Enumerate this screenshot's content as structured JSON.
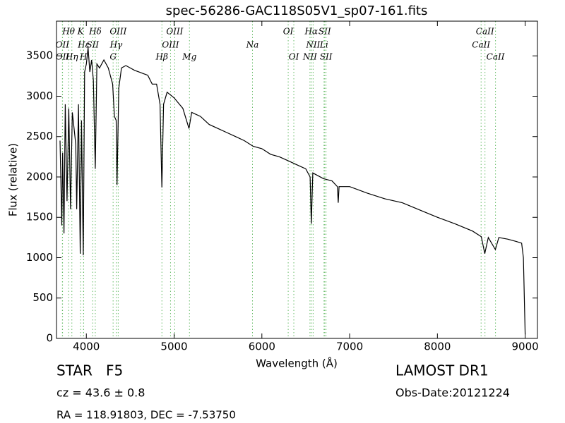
{
  "chart_data": {
    "type": "line",
    "title": "spec-56286-GAC118S05V1_sp07-161.fits",
    "x_label": "Wavelength (Å)",
    "y_label": "Flux (relative)",
    "xlim": [
      3660,
      9140
    ],
    "ylim": [
      0,
      3930
    ],
    "xticks": [
      4000,
      5000,
      6000,
      7000,
      8000,
      9000
    ],
    "yticks": [
      0,
      500,
      1000,
      1500,
      2000,
      2500,
      3000,
      3500
    ],
    "series": [
      {
        "color": "#000000",
        "x": [
          3700,
          3720,
          3730,
          3745,
          3760,
          3780,
          3800,
          3820,
          3840,
          3860,
          3880,
          3890,
          3910,
          3930,
          3945,
          3965,
          3980,
          4000,
          4020,
          4040,
          4060,
          4080,
          4102,
          4120,
          4150,
          4200,
          4250,
          4300,
          4320,
          4340,
          4350,
          4370,
          4400,
          4450,
          4500,
          4550,
          4600,
          4650,
          4700,
          4750,
          4800,
          4840,
          4861,
          4880,
          4920,
          5000,
          5100,
          5170,
          5200,
          5300,
          5400,
          5500,
          5600,
          5700,
          5800,
          5900,
          6000,
          6100,
          6200,
          6300,
          6400,
          6500,
          6550,
          6563,
          6580,
          6700,
          6800,
          6860,
          6870,
          6880,
          7000,
          7200,
          7400,
          7600,
          7800,
          8000,
          8200,
          8400,
          8500,
          8540,
          8580,
          8660,
          8700,
          8800,
          8900,
          8960,
          8980,
          9000
        ],
        "values": [
          2450,
          1400,
          2300,
          1300,
          2900,
          1700,
          2850,
          1600,
          2800,
          2600,
          2400,
          1600,
          2900,
          1050,
          2700,
          1030,
          3300,
          3400,
          3600,
          3300,
          3450,
          3200,
          2100,
          3400,
          3350,
          3450,
          3350,
          3150,
          2750,
          2700,
          1900,
          3100,
          3350,
          3380,
          3350,
          3320,
          3300,
          3280,
          3260,
          3150,
          3150,
          2900,
          1870,
          2900,
          3050,
          2980,
          2850,
          2600,
          2800,
          2750,
          2650,
          2600,
          2550,
          2500,
          2450,
          2380,
          2350,
          2280,
          2250,
          2200,
          2150,
          2100,
          2000,
          1420,
          2050,
          1980,
          1950,
          1880,
          1680,
          1880,
          1880,
          1800,
          1730,
          1680,
          1590,
          1500,
          1420,
          1330,
          1260,
          1050,
          1250,
          1100,
          1250,
          1230,
          1200,
          1180,
          1000,
          50
        ]
      }
    ],
    "line_color": "#66bb66",
    "spectral_lines": [
      {
        "label": "Hθ",
        "x": 3798,
        "row": 1
      },
      {
        "label": "K",
        "x": 3934,
        "row": 1
      },
      {
        "label": "Hδ",
        "x": 4102,
        "row": 1
      },
      {
        "label": "OIII",
        "x": 4363,
        "row": 1
      },
      {
        "label": "OIII",
        "x": 5007,
        "row": 1
      },
      {
        "label": "OI",
        "x": 6300,
        "row": 1
      },
      {
        "label": "Hα",
        "x": 6563,
        "row": 1
      },
      {
        "label": "SII",
        "x": 6716,
        "row": 1
      },
      {
        "label": "CaII",
        "x": 8542,
        "row": 1
      },
      {
        "label": "OII",
        "x": 3727,
        "row": 2
      },
      {
        "label": "Hε",
        "x": 3970,
        "row": 2
      },
      {
        "label": "SII",
        "x": 4072,
        "row": 2
      },
      {
        "label": "Hγ",
        "x": 4340,
        "row": 2
      },
      {
        "label": "OIII",
        "x": 4959,
        "row": 2
      },
      {
        "label": "Na",
        "x": 5893,
        "row": 2
      },
      {
        "label": "NII",
        "x": 6584,
        "row": 2
      },
      {
        "label": "Li",
        "x": 6708,
        "row": 2
      },
      {
        "label": "CaII",
        "x": 8498,
        "row": 2
      },
      {
        "label": "OII",
        "x": 3729,
        "row": 3
      },
      {
        "label": "Hη",
        "x": 3835,
        "row": 3
      },
      {
        "label": "H",
        "x": 3968,
        "row": 3
      },
      {
        "label": "G",
        "x": 4305,
        "row": 3
      },
      {
        "label": "Hβ",
        "x": 4861,
        "row": 3
      },
      {
        "label": "Mg",
        "x": 5175,
        "row": 3
      },
      {
        "label": "OI",
        "x": 6364,
        "row": 3
      },
      {
        "label": "NII",
        "x": 6548,
        "row": 3
      },
      {
        "label": "SII",
        "x": 6731,
        "row": 3
      },
      {
        "label": "CaII",
        "x": 8662,
        "row": 3
      }
    ],
    "info": {
      "class": "STAR   F5",
      "cz": "cz = 43.6 ± 0.8",
      "coords": "RA = 118.91803, DEC = -7.53750",
      "survey": "LAMOST DR1",
      "obs_date": "Obs-Date:20121224"
    }
  }
}
